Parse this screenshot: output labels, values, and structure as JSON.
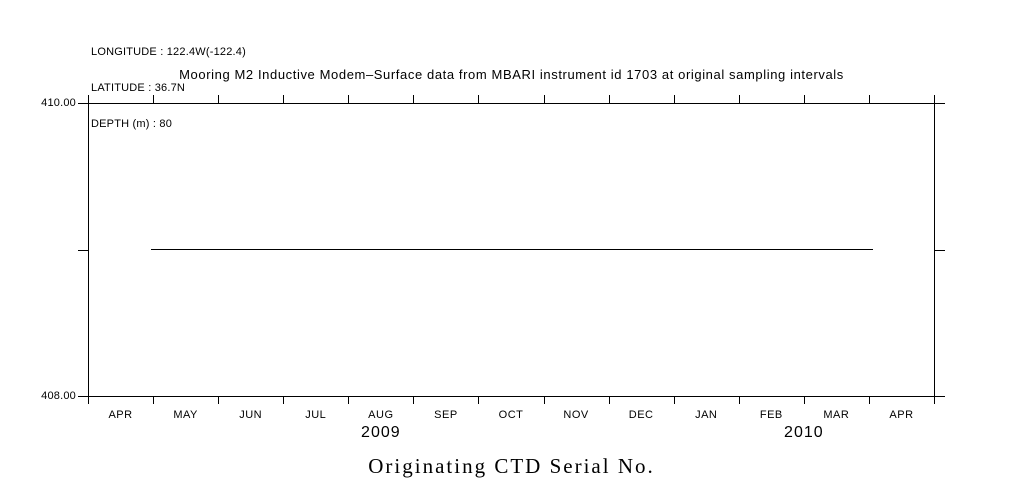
{
  "page": {
    "background_color": "#ffffff",
    "ink_color": "#000000"
  },
  "header": {
    "info_lines": [
      "LONGITUDE : 122.4W(-122.4)",
      "LATITUDE : 36.7N",
      "DEPTH (m) : 80"
    ]
  },
  "chart_data": {
    "type": "line",
    "title": "Mooring M2 Inductive Modem–Surface data from MBARI instrument id 1703 at original sampling intervals",
    "bottom_axis_title": "Originating CTD Serial No.",
    "grid": false,
    "legend": false,
    "x_axis": {
      "start": "APR 2009",
      "end": "APR 2010",
      "month_labels": [
        "APR",
        "MAY",
        "JUN",
        "JUL",
        "AUG",
        "SEP",
        "OCT",
        "NOV",
        "DEC",
        "JAN",
        "FEB",
        "MAR",
        "APR"
      ],
      "year_labels": [
        {
          "label": "2009",
          "from_month": 0,
          "to_month": 9
        },
        {
          "label": "2010",
          "from_month": 9,
          "to_month": 13
        }
      ]
    },
    "y_axis": {
      "min": 408,
      "max": 410,
      "tick_values": [
        408,
        409,
        410
      ],
      "labeled_ticks": [
        {
          "value": 410,
          "label": "410.00"
        },
        {
          "value": 408,
          "label": "408.00"
        }
      ]
    },
    "series": [
      {
        "name": "Originating CTD Serial No.",
        "value": 409,
        "start_month_offset": 0.97,
        "end_month_offset": 12.06
      }
    ]
  }
}
